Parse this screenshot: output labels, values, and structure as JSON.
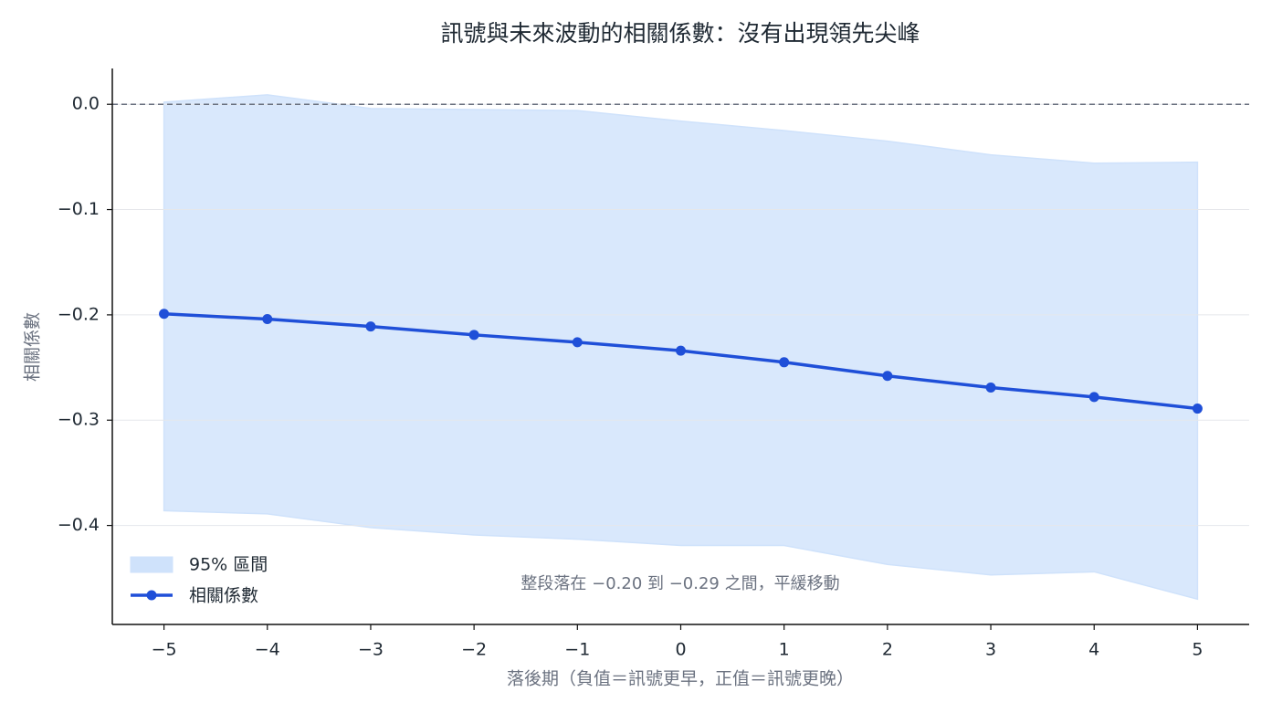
{
  "chart_data": {
    "type": "line",
    "title": "訊號與未來波動的相關係數：沒有出現領先尖峰",
    "x_label": "落後期（負值＝訊號更早，正值＝訊號更晚）",
    "y_label": "相關係數",
    "annotation": "整段落在 −0.20 到 −0.29 之間，平緩移動",
    "x": [
      -5,
      -4,
      -3,
      -2,
      -1,
      0,
      1,
      2,
      3,
      4,
      5
    ],
    "series": [
      {
        "name": "相關係數",
        "color": "#1f4fd8",
        "values": [
          -0.199,
          -0.204,
          -0.211,
          -0.219,
          -0.226,
          -0.234,
          -0.245,
          -0.258,
          -0.269,
          -0.278,
          -0.289
        ]
      }
    ],
    "band": {
      "name": "95% 區間",
      "color": "#cfe2fb",
      "upper": [
        0.002,
        0.009,
        -0.004,
        -0.005,
        -0.006,
        -0.016,
        -0.025,
        -0.035,
        -0.048,
        -0.056,
        -0.055
      ],
      "lower": [
        -0.386,
        -0.389,
        -0.402,
        -0.409,
        -0.413,
        -0.419,
        -0.419,
        -0.437,
        -0.447,
        -0.444,
        -0.47
      ]
    },
    "reference_line": 0,
    "xlim": [
      -5.5,
      5.5
    ],
    "ylim": [
      -0.494,
      0.034
    ],
    "xticks": [
      {
        "value": -5,
        "label": "−5"
      },
      {
        "value": -4,
        "label": "−4"
      },
      {
        "value": -3,
        "label": "−3"
      },
      {
        "value": -2,
        "label": "−2"
      },
      {
        "value": -1,
        "label": "−1"
      },
      0,
      1,
      2,
      3,
      4,
      5
    ],
    "yticks": [
      {
        "value": 0,
        "label": "0.0"
      },
      {
        "value": -0.1,
        "label": "−0.1"
      },
      {
        "value": -0.2,
        "label": "−0.2"
      },
      {
        "value": -0.3,
        "label": "−0.3"
      },
      {
        "value": -0.4,
        "label": "−0.4"
      }
    ],
    "grid": true,
    "legend": "lower left"
  }
}
